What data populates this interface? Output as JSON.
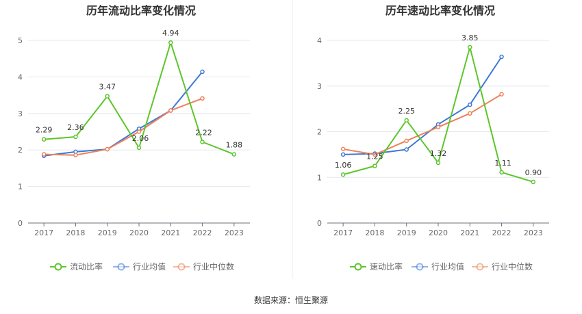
{
  "source": "数据来源：恒生聚源",
  "colors": {
    "green": "#5cc62a",
    "blue": "#3c78d8",
    "orange": "#ee8057",
    "grid": "#e6e6ef",
    "axis": "#6e7079"
  },
  "chart_data": [
    {
      "type": "line",
      "title": "历年流动比率变化情况",
      "categories": [
        "2017",
        "2018",
        "2019",
        "2020",
        "2021",
        "2022",
        "2023"
      ],
      "ylim": [
        0,
        5
      ],
      "yticks": [
        0,
        1,
        2,
        3,
        4,
        5
      ],
      "ytick_labels": [
        "0",
        "1",
        "2",
        "3",
        "4",
        "5"
      ],
      "grid": true,
      "legend_position": "bottom",
      "series": [
        {
          "name": "流动比率",
          "color": "#5cc62a",
          "values": [
            2.29,
            2.36,
            3.47,
            2.06,
            4.94,
            2.22,
            1.88
          ],
          "labels": [
            "2.29",
            "2.36",
            "3.47",
            "2.06",
            "4.94",
            "2.22",
            "1.88"
          ]
        },
        {
          "name": "行业均值",
          "color": "#3c78d8",
          "values": [
            1.84,
            1.95,
            2.02,
            2.58,
            3.08,
            4.14,
            null
          ]
        },
        {
          "name": "行业中位数",
          "color": "#ee8057",
          "values": [
            1.88,
            1.86,
            2.02,
            2.5,
            3.08,
            3.41,
            null
          ]
        }
      ]
    },
    {
      "type": "line",
      "title": "历年速动比率变化情况",
      "categories": [
        "2017",
        "2018",
        "2019",
        "2020",
        "2021",
        "2022",
        "2023"
      ],
      "ylim": [
        0,
        4
      ],
      "yticks": [
        0,
        1,
        2,
        3,
        4
      ],
      "ytick_labels": [
        "0",
        "1",
        "2",
        "3",
        "4"
      ],
      "grid": true,
      "legend_position": "bottom",
      "series": [
        {
          "name": "速动比率",
          "color": "#5cc62a",
          "values": [
            1.06,
            1.25,
            2.25,
            1.32,
            3.85,
            1.11,
            0.9
          ],
          "labels": [
            "1.06",
            "1.25",
            "2.25",
            "1.32",
            "3.85",
            "1.11",
            "0.90"
          ]
        },
        {
          "name": "行业均值",
          "color": "#3c78d8",
          "values": [
            1.5,
            1.52,
            1.61,
            2.16,
            2.59,
            3.64,
            null
          ]
        },
        {
          "name": "行业中位数",
          "color": "#ee8057",
          "values": [
            1.62,
            1.5,
            1.8,
            2.1,
            2.4,
            2.82,
            null
          ]
        }
      ]
    }
  ]
}
